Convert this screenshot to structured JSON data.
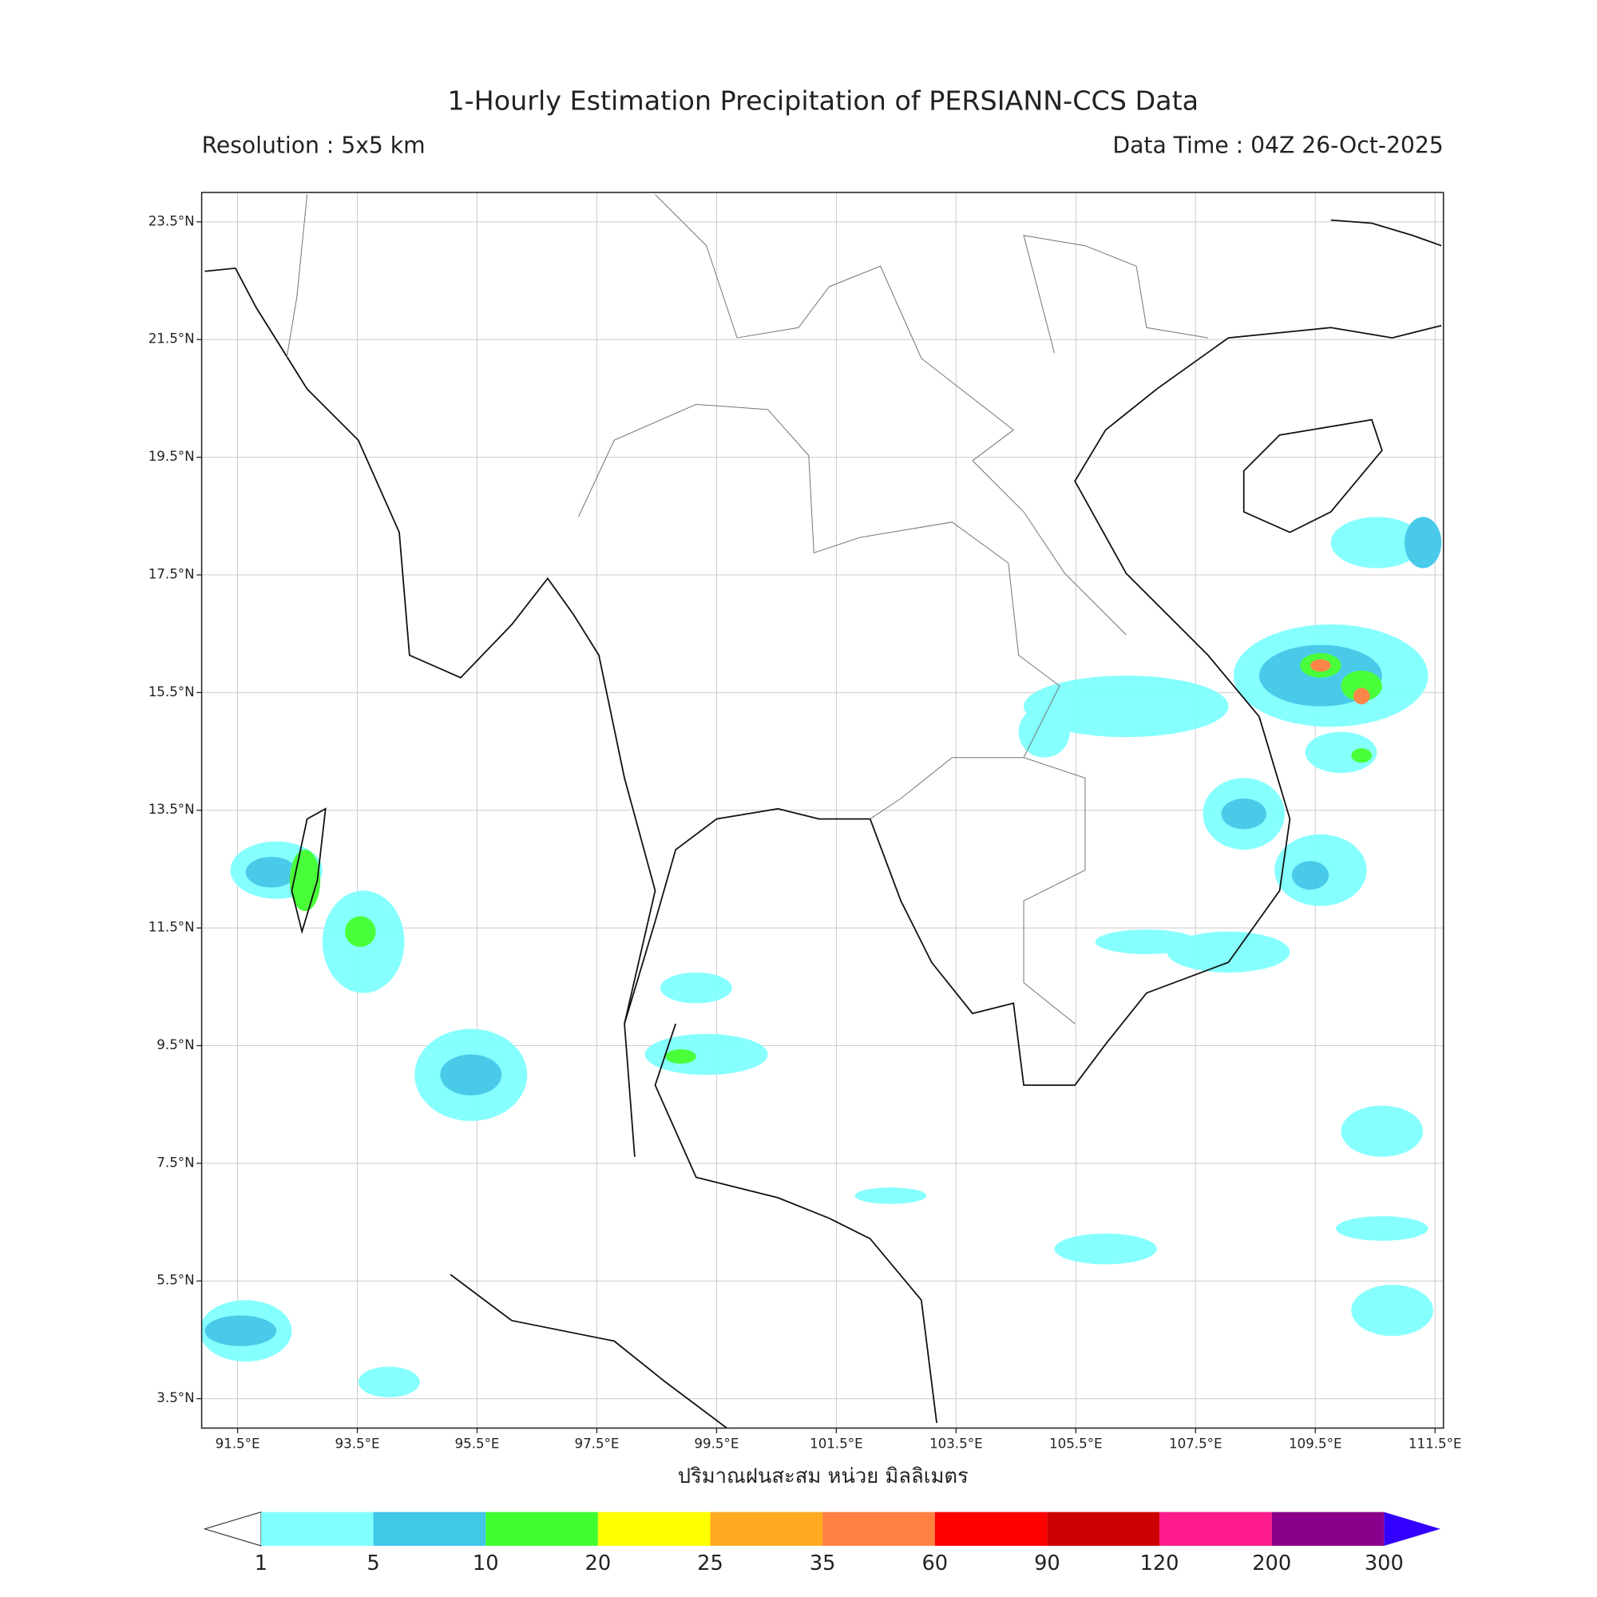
{
  "header": {
    "title": "1-Hourly Estimation Precipitation of PERSIANN-CCS Data",
    "resolution": "Resolution : 5x5 km",
    "data_time": "Data Time : 04Z 26-Oct-2025"
  },
  "map": {
    "lon_range": [
      90.9,
      111.64
    ],
    "lat_range": [
      3.0,
      24.0
    ],
    "lon_ticks": [
      {
        "value": 91.5,
        "label": "91.5°E"
      },
      {
        "value": 93.5,
        "label": "93.5°E"
      },
      {
        "value": 95.5,
        "label": "95.5°E"
      },
      {
        "value": 97.5,
        "label": "97.5°E"
      },
      {
        "value": 99.5,
        "label": "99.5°E"
      },
      {
        "value": 101.5,
        "label": "101.5°E"
      },
      {
        "value": 103.5,
        "label": "103.5°E"
      },
      {
        "value": 105.5,
        "label": "105.5°E"
      },
      {
        "value": 107.5,
        "label": "107.5°E"
      },
      {
        "value": 109.5,
        "label": "109.5°E"
      },
      {
        "value": 111.5,
        "label": "111.5°E"
      }
    ],
    "lat_ticks": [
      {
        "value": 3.5,
        "label": "3.5°N"
      },
      {
        "value": 5.5,
        "label": "5.5°N"
      },
      {
        "value": 7.5,
        "label": "7.5°N"
      },
      {
        "value": 9.5,
        "label": "9.5°N"
      },
      {
        "value": 11.5,
        "label": "11.5°N"
      },
      {
        "value": 13.5,
        "label": "13.5°N"
      },
      {
        "value": 15.5,
        "label": "15.5°N"
      },
      {
        "value": 17.5,
        "label": "17.5°N"
      },
      {
        "value": 19.5,
        "label": "19.5°N"
      },
      {
        "value": 21.5,
        "label": "21.5°N"
      },
      {
        "value": 23.5,
        "label": "23.5°N"
      }
    ],
    "grid": true
  },
  "colorbar": {
    "label": "ปริมาณฝนสะสม หน่วย มิลลิเมตร",
    "levels": [
      1,
      5,
      10,
      20,
      25,
      35,
      60,
      90,
      120,
      200,
      300
    ],
    "colors": [
      "#80ffff",
      "#40c8e8",
      "#40ff30",
      "#ffff00",
      "#ffaa20",
      "#ff8040",
      "#ff0000",
      "#cc0000",
      "#ff1a8c",
      "#8b008b"
    ],
    "under_color": "#ffffff",
    "over_color": "#3300ff"
  }
}
